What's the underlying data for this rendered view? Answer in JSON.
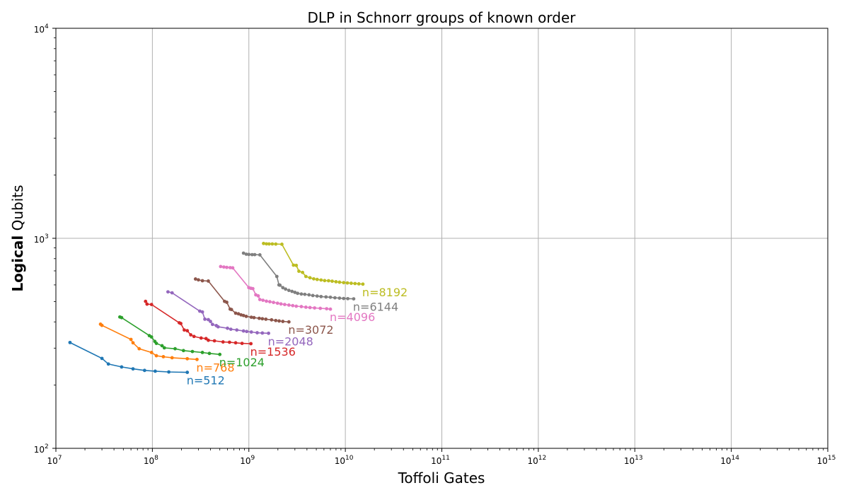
{
  "chart_data": {
    "type": "line",
    "title": "DLP in Schnorr groups of known order",
    "xlabel": "Toffoli Gates",
    "ylabel_bold": "Logical",
    "ylabel_rest": " Qubits",
    "x_scale": "log",
    "y_scale": "log",
    "xlim": [
      10000000,
      1000000000000000
    ],
    "ylim": [
      100,
      10000
    ],
    "x_ticks": [
      {
        "base": "10",
        "exp": "7",
        "value": 10000000.0
      },
      {
        "base": "10",
        "exp": "8",
        "value": 100000000.0
      },
      {
        "base": "10",
        "exp": "9",
        "value": 1000000000.0
      },
      {
        "base": "10",
        "exp": "10",
        "value": 10000000000.0
      },
      {
        "base": "10",
        "exp": "11",
        "value": 100000000000.0
      },
      {
        "base": "10",
        "exp": "12",
        "value": 1000000000000.0
      },
      {
        "base": "10",
        "exp": "13",
        "value": 10000000000000.0
      },
      {
        "base": "10",
        "exp": "14",
        "value": 100000000000000.0
      },
      {
        "base": "10",
        "exp": "15",
        "value": 1000000000000000.0
      }
    ],
    "y_ticks": [
      {
        "base": "10",
        "exp": "2",
        "value": 100
      },
      {
        "base": "10",
        "exp": "3",
        "value": 1000
      },
      {
        "base": "10",
        "exp": "4",
        "value": 10000
      }
    ],
    "grid": true,
    "series": [
      {
        "name": "n=512",
        "color": "#1f77b4",
        "x": [
          14000000.0,
          30000000.0,
          35000000.0,
          48000000.0,
          63000000.0,
          83000000.0,
          107000000.0,
          148000000.0,
          230000000.0
        ],
        "y": [
          319,
          268,
          252,
          244,
          239,
          235,
          233,
          231,
          230
        ]
      },
      {
        "name": "n=768",
        "color": "#ff7f0e",
        "x": [
          29000000.0,
          30000000.0,
          60000000.0,
          63000000.0,
          73000000.0,
          98000000.0,
          110000000.0,
          130000000.0,
          160000000.0,
          230000000.0,
          290000000.0
        ],
        "y": [
          390,
          385,
          330,
          318,
          298,
          286,
          276,
          273,
          270,
          267,
          265
        ]
      },
      {
        "name": "n=1024",
        "color": "#2ca02c",
        "x": [
          46000000.0,
          48000000.0,
          93000000.0,
          98000000.0,
          106000000.0,
          110000000.0,
          126000000.0,
          133000000.0,
          172000000.0,
          210000000.0,
          260000000.0,
          330000000.0,
          390000000.0,
          500000000.0
        ],
        "y": [
          422,
          419,
          344,
          339,
          323,
          316,
          308,
          301,
          298,
          292,
          289,
          286,
          283,
          280
        ]
      },
      {
        "name": "n=1536",
        "color": "#d62728",
        "x": [
          85000000.0,
          88000000.0,
          98000000.0,
          190000000.0,
          197000000.0,
          214000000.0,
          230000000.0,
          250000000.0,
          270000000.0,
          320000000.0,
          360000000.0,
          380000000.0,
          440000000.0,
          540000000.0,
          630000000.0,
          730000000.0,
          850000000.0,
          1050000000.0
        ],
        "y": [
          501,
          486,
          484,
          396,
          393,
          366,
          363,
          347,
          341,
          335,
          333,
          327,
          325,
          321,
          320,
          318,
          316,
          315
        ]
      },
      {
        "name": "n=2048",
        "color": "#9467bd",
        "x": [
          145000000.0,
          160000000.0,
          310000000.0,
          330000000.0,
          350000000.0,
          380000000.0,
          400000000.0,
          420000000.0,
          460000000.0,
          480000000.0,
          600000000.0,
          650000000.0,
          750000000.0,
          880000000.0,
          950000000.0,
          1060000000.0,
          1220000000.0,
          1380000000.0,
          1600000000.0
        ],
        "y": [
          556,
          550,
          450,
          446,
          412,
          410,
          402,
          389,
          384,
          379,
          373,
          369,
          366,
          362,
          360,
          358,
          355,
          354,
          353
        ]
      },
      {
        "name": "n=3072",
        "color": "#8c564b",
        "x": [
          280000000.0,
          300000000.0,
          330000000.0,
          380000000.0,
          560000000.0,
          590000000.0,
          640000000.0,
          660000000.0,
          730000000.0,
          780000000.0,
          830000000.0,
          880000000.0,
          940000000.0,
          1060000000.0,
          1130000000.0,
          1280000000.0,
          1380000000.0,
          1500000000.0,
          1720000000.0,
          1900000000.0,
          2060000000.0,
          2250000000.0,
          2600000000.0
        ],
        "y": [
          640,
          634,
          628,
          626,
          501,
          496,
          460,
          458,
          440,
          437,
          432,
          429,
          425,
          421,
          419,
          416,
          414,
          412,
          409,
          406,
          404,
          402,
          400
        ]
      },
      {
        "name": "n=4096",
        "color": "#e377c2",
        "x": [
          510000000.0,
          550000000.0,
          590000000.0,
          640000000.0,
          680000000.0,
          1000000000.0,
          1050000000.0,
          1100000000.0,
          1180000000.0,
          1250000000.0,
          1300000000.0,
          1400000000.0,
          1520000000.0,
          1650000000.0,
          1800000000.0,
          1980000000.0,
          2150000000.0,
          2350000000.0,
          2600000000.0,
          2850000000.0,
          3100000000.0,
          3500000000.0,
          3900000000.0,
          4300000000.0,
          4800000000.0,
          5500000000.0,
          6400000000.0,
          7000000000.0
        ],
        "y": [
          734,
          730,
          727,
          725,
          723,
          582,
          578,
          576,
          538,
          532,
          511,
          507,
          502,
          499,
          495,
          491,
          487,
          484,
          481,
          478,
          475,
          473,
          470,
          468,
          466,
          464,
          462,
          460
        ]
      },
      {
        "name": "n=6144",
        "color": "#7f7f7f",
        "x": [
          880000000.0,
          940000000.0,
          1000000000.0,
          1080000000.0,
          1150000000.0,
          1300000000.0,
          1950000000.0,
          2050000000.0,
          2100000000.0,
          2250000000.0,
          2400000000.0,
          2600000000.0,
          2800000000.0,
          3000000000.0,
          3200000000.0,
          3500000000.0,
          3800000000.0,
          4200000000.0,
          4600000000.0,
          5100000000.0,
          5600000000.0,
          6300000000.0,
          7000000000.0,
          7800000000.0,
          8700000000.0,
          9600000000.0,
          10600000000.0,
          12200000000.0
        ],
        "y": [
          850,
          840,
          838,
          836,
          836,
          834,
          658,
          600,
          598,
          582,
          573,
          565,
          559,
          553,
          547,
          543,
          541,
          538,
          534,
          531,
          528,
          526,
          524,
          521,
          519,
          517,
          516,
          515
        ]
      },
      {
        "name": "n=8192",
        "color": "#bcbd22",
        "x": [
          1420000000.0,
          1520000000.0,
          1620000000.0,
          1750000000.0,
          1900000000.0,
          2200000000.0,
          2900000000.0,
          3100000000.0,
          3300000000.0,
          3600000000.0,
          3900000000.0,
          4300000000.0,
          4700000000.0,
          5100000000.0,
          5600000000.0,
          6100000000.0,
          6700000000.0,
          7300000000.0,
          8000000000.0,
          8700000000.0,
          9600000000.0,
          10500000000.0,
          11500000000.0,
          12600000000.0,
          13800000000.0,
          15200000000.0
        ],
        "y": [
          945,
          941,
          940,
          940,
          939,
          937,
          745,
          743,
          697,
          688,
          658,
          649,
          641,
          637,
          633,
          629,
          628,
          625,
          621,
          618,
          615,
          613,
          611,
          609,
          607,
          605
        ]
      }
    ]
  }
}
